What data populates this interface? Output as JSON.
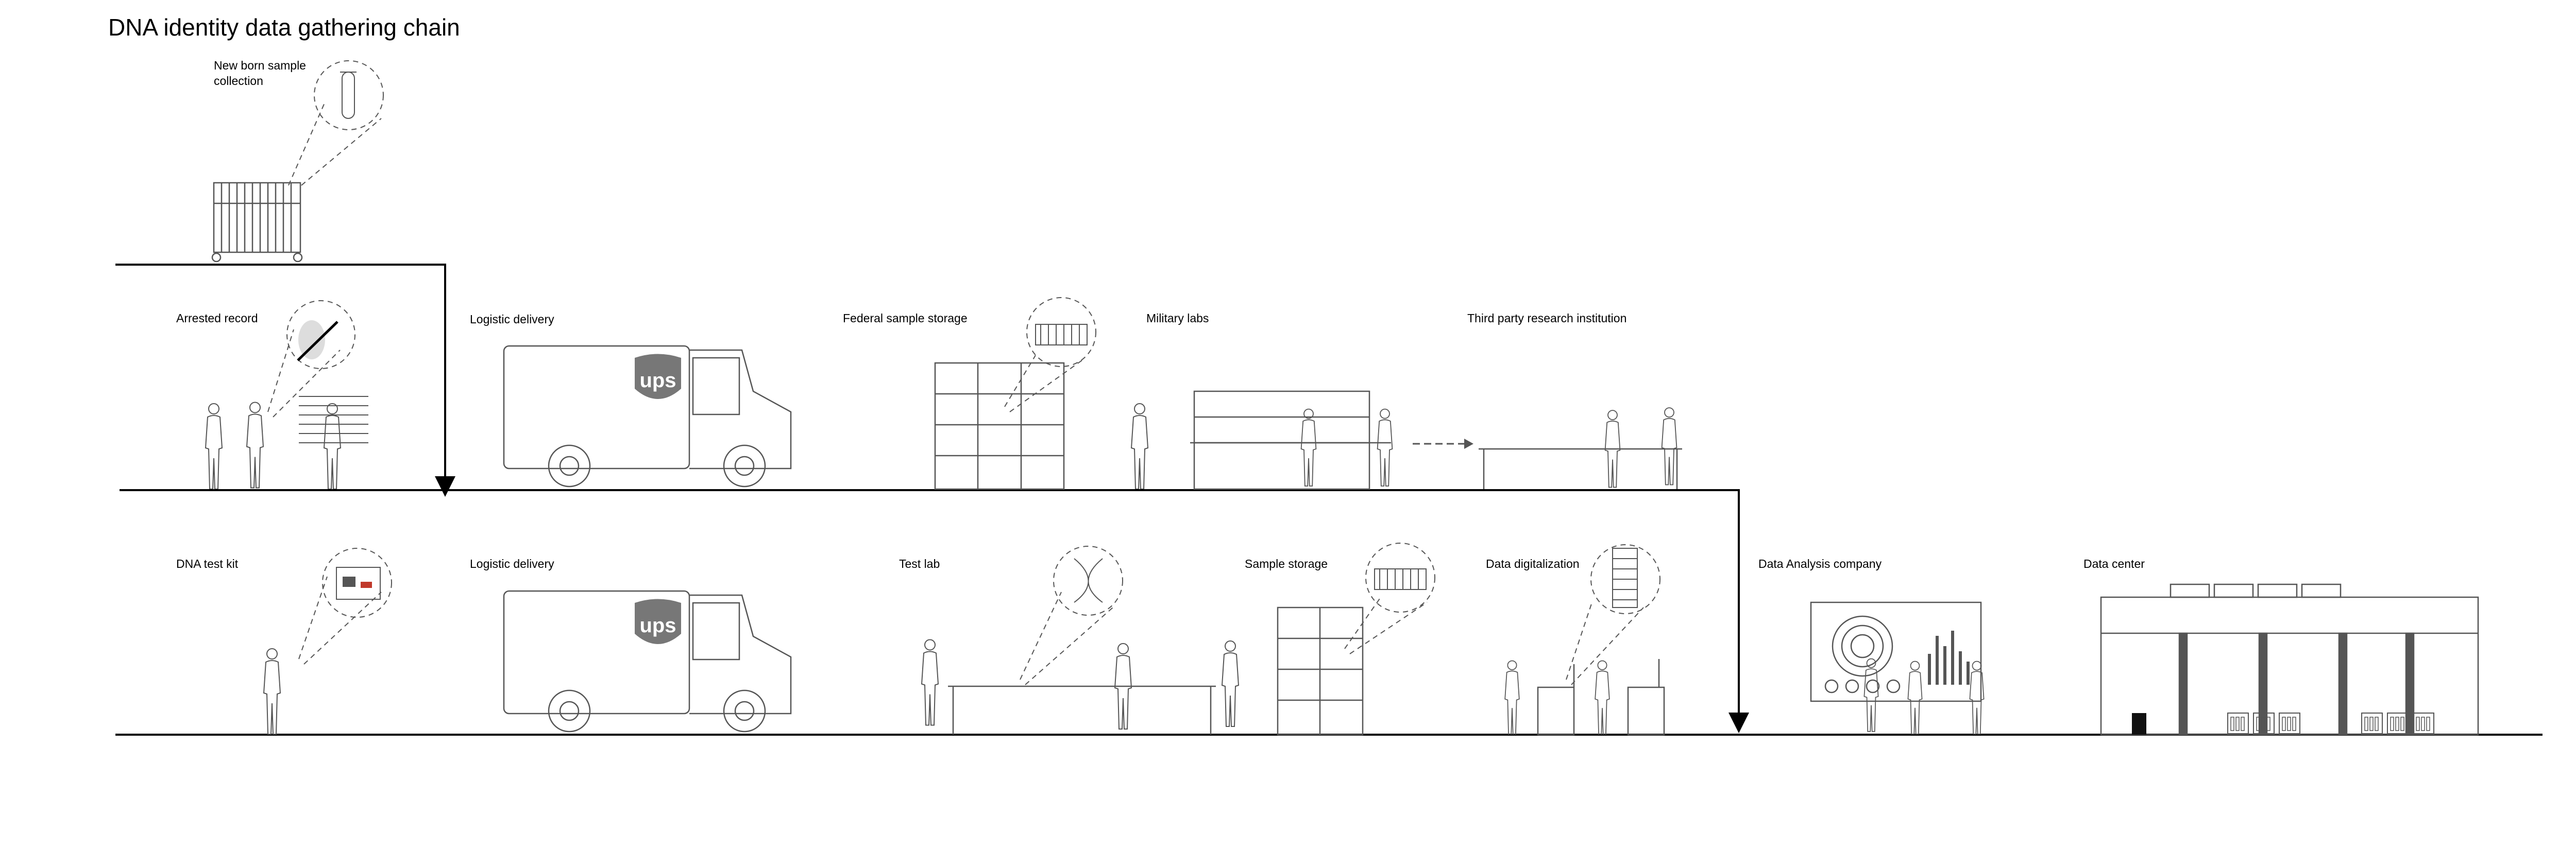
{
  "title": "DNA identity data gathering chain",
  "stages": {
    "newborn": "New born sample collection",
    "arrested": "Arrested record",
    "logistic1": "Logistic delivery",
    "federal": "Federal sample storage",
    "military": "Military labs",
    "thirdparty": "Third party research institution",
    "dnakit": "DNA test kit",
    "logistic2": "Logistic delivery",
    "testlab": "Test lab",
    "samplestorage": "Sample storage",
    "datadigital": "Data digitalization",
    "dataanalysis": "Data Analysis company",
    "datacenter": "Data center"
  },
  "truck_logo": "ups",
  "colors": {
    "line": "#000000",
    "drawing": "#555555",
    "accent": "#c0392b"
  }
}
